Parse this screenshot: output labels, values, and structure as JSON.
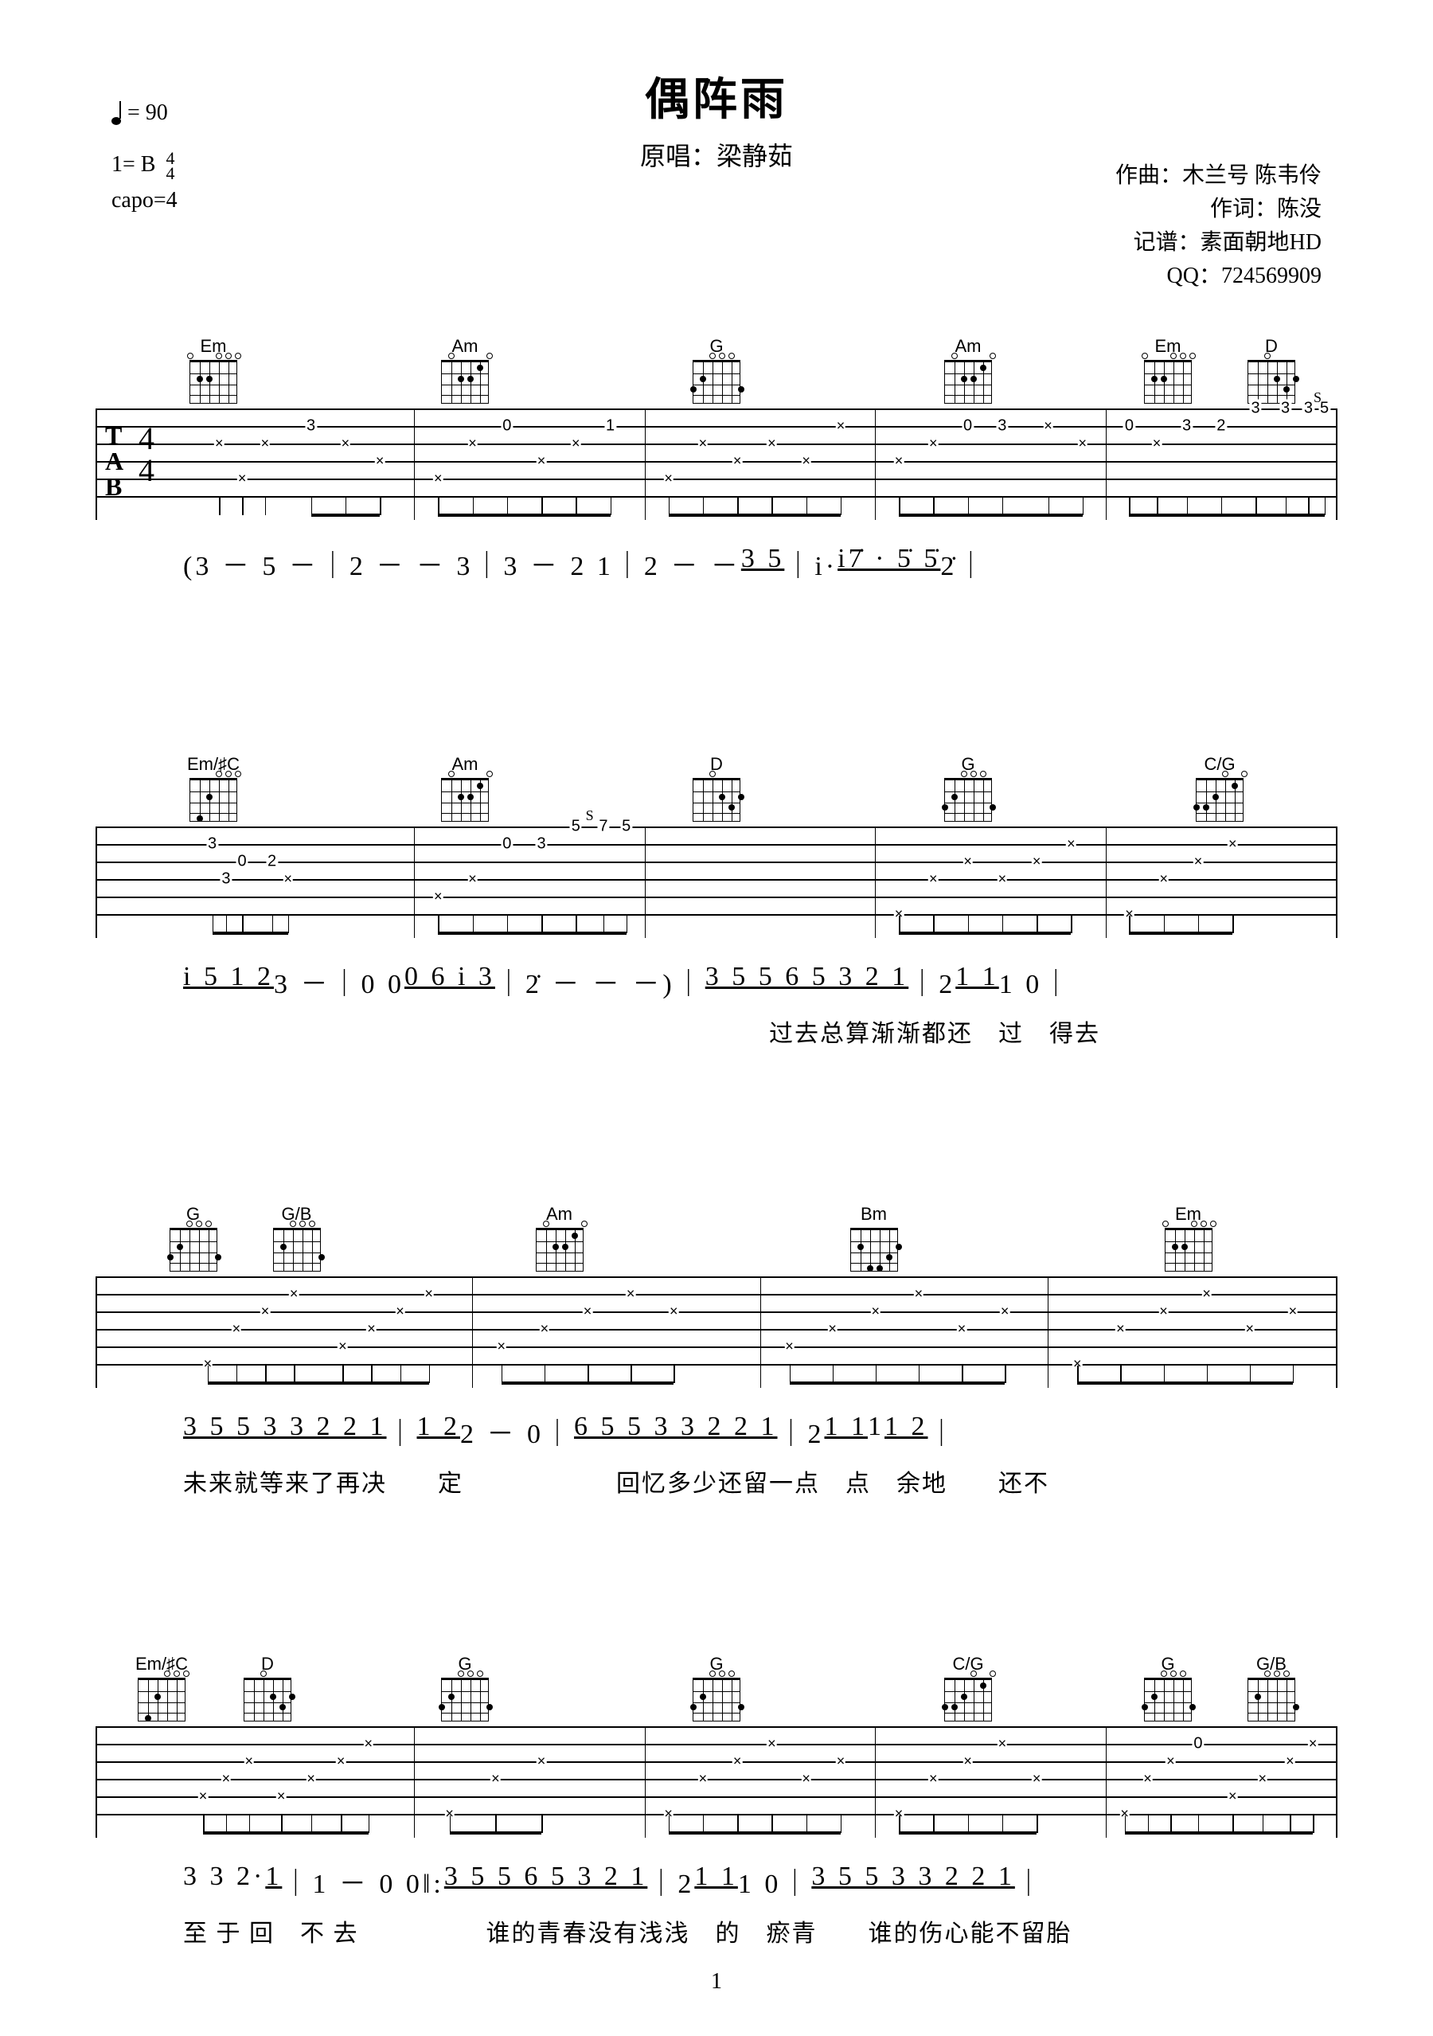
{
  "title": "偶阵雨",
  "subtitle_prefix": "原唱：",
  "artist": "梁静茹",
  "tempo_label": "= 90",
  "key_label": "1= B",
  "timesig_top": "4",
  "timesig_bot": "4",
  "capo": "capo=4",
  "credits": {
    "composer_label": "作曲：木兰号 陈韦伶",
    "lyricist_label": "作词：陈没",
    "transcriber_label": "记谱：素面朝地HD",
    "qq_label": "QQ：724569909"
  },
  "page_number": "1",
  "colors": {
    "bg": "#ffffff",
    "fg": "#000000"
  },
  "systems": [
    {
      "chords": [
        [
          "Em"
        ],
        [
          "Am"
        ],
        [
          "G"
        ],
        [
          "Am"
        ],
        [
          "Em",
          "D"
        ]
      ],
      "tab_bars": [
        {
          "notes": [
            {
              "str": 2,
              "fret": "3",
              "pos": 55
            },
            {
              "str": 3,
              "pos": 15,
              "x": true
            },
            {
              "str": 3,
              "pos": 35,
              "x": true
            },
            {
              "str": 5,
              "pos": 25,
              "x": true
            },
            {
              "str": 3,
              "pos": 70,
              "x": true
            },
            {
              "str": 4,
              "pos": 85,
              "x": true
            }
          ]
        },
        {
          "notes": [
            {
              "str": 5,
              "pos": 10,
              "x": true
            },
            {
              "str": 3,
              "pos": 25,
              "x": true
            },
            {
              "str": 2,
              "fret": "0",
              "pos": 40
            },
            {
              "str": 4,
              "pos": 55,
              "x": true
            },
            {
              "str": 3,
              "pos": 70,
              "x": true
            },
            {
              "str": 2,
              "fret": "1",
              "pos": 85
            }
          ]
        },
        {
          "notes": [
            {
              "str": 5,
              "pos": 10,
              "x": true
            },
            {
              "str": 3,
              "pos": 25,
              "x": true
            },
            {
              "str": 4,
              "pos": 40,
              "x": true
            },
            {
              "str": 3,
              "pos": 55,
              "x": true
            },
            {
              "str": 4,
              "pos": 70,
              "x": true
            },
            {
              "str": 2,
              "pos": 85,
              "x": true
            }
          ]
        },
        {
          "notes": [
            {
              "str": 4,
              "pos": 10,
              "x": true
            },
            {
              "str": 3,
              "pos": 25,
              "x": true
            },
            {
              "str": 2,
              "fret": "0",
              "pos": 40
            },
            {
              "str": 2,
              "fret": "3",
              "pos": 55
            },
            {
              "str": 2,
              "fret": "1",
              "pos": 75,
              "x": true
            },
            {
              "str": 3,
              "pos": 90,
              "x": true
            }
          ]
        },
        {
          "notes": [
            {
              "str": 2,
              "fret": "0",
              "pos": 10
            },
            {
              "str": 3,
              "pos": 22,
              "x": true
            },
            {
              "str": 2,
              "fret": "3",
              "pos": 35
            },
            {
              "str": 2,
              "fret": "2",
              "pos": 50
            },
            {
              "str": 1,
              "fret": "3",
              "pos": 65
            },
            {
              "str": 1,
              "fret": "3",
              "pos": 78
            },
            {
              "str": 1,
              "fret": "3",
              "pos": 88
            },
            {
              "str": 1,
              "fret": "5",
              "pos": 95
            }
          ],
          "s_label": {
            "pos": 92,
            "text": "S"
          }
        }
      ],
      "jianpu": "(3  －  5  －｜2  －  －  3｜3  －  2  1｜2  －  －  <u>3 5</u>｜i·  <u>i</u> <u>7̇ · 5̇ 5̇</u> 2̇｜",
      "lyrics": ""
    },
    {
      "chords": [
        [
          "Em/♯C"
        ],
        [
          "Am"
        ],
        [
          "D"
        ],
        [
          "G"
        ],
        [
          "C/G"
        ]
      ],
      "tab_bars": [
        {
          "notes": [
            {
              "str": 2,
              "fret": "3",
              "pos": 12
            },
            {
              "str": 3,
              "fret": "0",
              "pos": 25
            },
            {
              "str": 3,
              "fret": "2",
              "pos": 38
            },
            {
              "str": 4,
              "fret": "3",
              "pos": 18
            },
            {
              "str": 4,
              "fret": "4",
              "pos": 45,
              "x": true
            }
          ]
        },
        {
          "notes": [
            {
              "str": 5,
              "pos": 10,
              "x": true
            },
            {
              "str": 4,
              "pos": 25,
              "x": true
            },
            {
              "str": 2,
              "fret": "0",
              "pos": 40
            },
            {
              "str": 2,
              "fret": "3",
              "pos": 55
            },
            {
              "str": 1,
              "fret": "5",
              "pos": 70
            },
            {
              "str": 1,
              "fret": "7",
              "pos": 82
            },
            {
              "str": 1,
              "fret": "5",
              "pos": 92
            }
          ],
          "s_label": {
            "pos": 76,
            "text": "S"
          }
        },
        {
          "notes": []
        },
        {
          "notes": [
            {
              "str": 6,
              "pos": 10,
              "x": true
            },
            {
              "str": 4,
              "pos": 25,
              "x": true
            },
            {
              "str": 3,
              "pos": 40,
              "x": true
            },
            {
              "str": 4,
              "pos": 55,
              "x": true
            },
            {
              "str": 3,
              "pos": 70,
              "x": true
            },
            {
              "str": 2,
              "pos": 85,
              "x": true
            }
          ]
        },
        {
          "notes": [
            {
              "str": 6,
              "pos": 10,
              "x": true
            },
            {
              "str": 4,
              "pos": 25,
              "x": true
            },
            {
              "str": 3,
              "pos": 40,
              "x": true
            },
            {
              "str": 2,
              "pos": 55,
              "x": true
            }
          ]
        }
      ],
      "jianpu": "<u>i 5 1 2</u> 3  －｜0  0  <u>0 6 i 3</u>｜2̇  －  －  －)｜<u>3 5 5 6 5 3 2 1</u>｜2  <u>1 1</u> 1  0｜",
      "lyrics": "　　　　　　　　　　　　　　　　　　　　　　　过去总算渐渐都还　过　得去"
    },
    {
      "chords": [
        [
          "G",
          "G/B"
        ],
        [
          "Am"
        ],
        [
          "Bm"
        ],
        [
          "Em"
        ]
      ],
      "tab_bars": [
        {
          "notes": [
            {
              "str": 6,
              "pos": 8,
              "x": true
            },
            {
              "str": 4,
              "pos": 18,
              "x": true
            },
            {
              "str": 3,
              "pos": 28,
              "x": true
            },
            {
              "str": 2,
              "pos": 38,
              "x": true
            },
            {
              "str": 5,
              "pos": 55,
              "x": true
            },
            {
              "str": 4,
              "pos": 65,
              "x": true
            },
            {
              "str": 3,
              "pos": 75,
              "x": true
            },
            {
              "str": 2,
              "pos": 85,
              "x": true
            }
          ]
        },
        {
          "notes": [
            {
              "str": 5,
              "pos": 10,
              "x": true
            },
            {
              "str": 4,
              "pos": 25,
              "x": true
            },
            {
              "str": 3,
              "pos": 40,
              "x": true
            },
            {
              "str": 2,
              "pos": 55,
              "x": true
            },
            {
              "str": 3,
              "pos": 70,
              "x": true
            }
          ]
        },
        {
          "notes": [
            {
              "str": 5,
              "pos": 10,
              "x": true
            },
            {
              "str": 4,
              "pos": 25,
              "x": true
            },
            {
              "str": 3,
              "pos": 40,
              "x": true
            },
            {
              "str": 2,
              "pos": 55,
              "x": true
            },
            {
              "str": 4,
              "pos": 70,
              "x": true
            },
            {
              "str": 3,
              "pos": 85,
              "x": true
            }
          ]
        },
        {
          "notes": [
            {
              "str": 6,
              "pos": 10,
              "x": true
            },
            {
              "str": 4,
              "pos": 25,
              "x": true
            },
            {
              "str": 3,
              "pos": 40,
              "x": true
            },
            {
              "str": 2,
              "pos": 55,
              "x": true
            },
            {
              "str": 4,
              "pos": 70,
              "x": true
            },
            {
              "str": 3,
              "pos": 85,
              "x": true
            }
          ]
        }
      ],
      "jianpu": "<u>3 5 5 3 3 2 2 1</u>｜<u>1 2</u> 2  －  0｜<u>6 5 5 3 3 2 2 1</u>｜2  <u>1 1</u> 1  <u>1 2</u>｜",
      "lyrics": "未来就等来了再决　　定　　　　　　回忆多少还留一点　点　余地　　还不"
    },
    {
      "chords": [
        [
          "Em/♯C",
          "D"
        ],
        [
          "G"
        ],
        [
          "G"
        ],
        [
          "C/G"
        ],
        [
          "G",
          "G/B"
        ]
      ],
      "tab_bars": [
        {
          "notes": [
            {
              "str": 5,
              "pos": 8,
              "x": true
            },
            {
              "str": 4,
              "pos": 18,
              "x": true
            },
            {
              "str": 3,
              "pos": 28,
              "x": true
            },
            {
              "str": 5,
              "pos": 42,
              "x": true
            },
            {
              "str": 4,
              "pos": 55,
              "x": true
            },
            {
              "str": 3,
              "pos": 68,
              "x": true
            },
            {
              "str": 2,
              "pos": 80,
              "x": true
            }
          ]
        },
        {
          "notes": [
            {
              "str": 6,
              "pos": 15,
              "x": true
            },
            {
              "str": 4,
              "pos": 35,
              "x": true
            },
            {
              "str": 3,
              "pos": 55,
              "x": true
            }
          ]
        },
        {
          "notes": [
            {
              "str": 6,
              "pos": 10,
              "x": true
            },
            {
              "str": 4,
              "pos": 25,
              "x": true
            },
            {
              "str": 3,
              "pos": 40,
              "x": true
            },
            {
              "str": 2,
              "pos": 55,
              "x": true
            },
            {
              "str": 4,
              "pos": 70,
              "x": true
            },
            {
              "str": 3,
              "pos": 85,
              "x": true
            }
          ]
        },
        {
          "notes": [
            {
              "str": 6,
              "pos": 10,
              "x": true
            },
            {
              "str": 4,
              "pos": 25,
              "x": true
            },
            {
              "str": 3,
              "pos": 40,
              "x": true
            },
            {
              "str": 2,
              "pos": 55,
              "x": true
            },
            {
              "str": 4,
              "pos": 70,
              "x": true
            }
          ]
        },
        {
          "notes": [
            {
              "str": 6,
              "pos": 8,
              "x": true
            },
            {
              "str": 4,
              "pos": 18,
              "x": true
            },
            {
              "str": 3,
              "pos": 28,
              "x": true
            },
            {
              "str": 2,
              "fret": "0",
              "pos": 40
            },
            {
              "str": 5,
              "pos": 55,
              "x": true
            },
            {
              "str": 4,
              "pos": 68,
              "x": true
            },
            {
              "str": 3,
              "pos": 80,
              "x": true
            },
            {
              "str": 2,
              "pos": 90,
              "x": true
            }
          ]
        }
      ],
      "jianpu": "3  3  2·  <u>1</u>｜1  －  0 0‖: <u>3 5 5 6 5 3 2 1</u>｜2  <u>1 1</u> 1  0｜<u>3 5 5 3 3 2 2 1</u>｜",
      "lyrics": "至  于  回　不  去　　　　　谁的青春没有浅浅　的　瘀青　　谁的伤心能不留胎"
    }
  ]
}
